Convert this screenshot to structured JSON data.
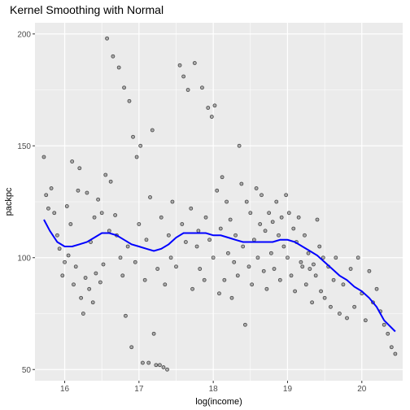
{
  "chart_data": {
    "type": "scatter",
    "title": "Kernel Smoothing with Normal",
    "xlabel": "log(income)",
    "ylabel": "packpc",
    "xlim": [
      15.6,
      20.55
    ],
    "ylim": [
      45,
      205
    ],
    "x_ticks": [
      "16",
      "17",
      "18",
      "19",
      "20"
    ],
    "y_ticks": [
      "50",
      "100",
      "150",
      "200"
    ],
    "grid": true,
    "legend": "none",
    "colors": {
      "panel": "#ebebeb",
      "grid": "#ffffff",
      "points": "#333333",
      "smooth": "#0000ff"
    },
    "series": [
      {
        "type": "scatter",
        "points": [
          [
            15.72,
            145
          ],
          [
            15.75,
            128
          ],
          [
            15.78,
            122
          ],
          [
            15.82,
            131
          ],
          [
            15.86,
            120
          ],
          [
            15.9,
            110
          ],
          [
            15.93,
            104
          ],
          [
            15.97,
            92
          ],
          [
            16.0,
            98
          ],
          [
            16.03,
            123
          ],
          [
            16.05,
            101
          ],
          [
            16.08,
            115
          ],
          [
            16.1,
            143
          ],
          [
            16.12,
            88
          ],
          [
            16.15,
            96
          ],
          [
            16.18,
            130
          ],
          [
            16.2,
            140
          ],
          [
            16.22,
            82
          ],
          [
            16.25,
            75
          ],
          [
            16.28,
            91
          ],
          [
            16.3,
            129
          ],
          [
            16.33,
            86
          ],
          [
            16.35,
            107
          ],
          [
            16.38,
            80
          ],
          [
            16.4,
            118
          ],
          [
            16.42,
            93
          ],
          [
            16.45,
            126
          ],
          [
            16.48,
            89
          ],
          [
            16.5,
            120
          ],
          [
            16.52,
            97
          ],
          [
            16.55,
            137
          ],
          [
            16.57,
            198
          ],
          [
            16.6,
            112
          ],
          [
            16.62,
            134
          ],
          [
            16.65,
            190
          ],
          [
            16.68,
            119
          ],
          [
            16.7,
            110
          ],
          [
            16.73,
            185
          ],
          [
            16.75,
            100
          ],
          [
            16.78,
            92
          ],
          [
            16.8,
            176
          ],
          [
            16.82,
            74
          ],
          [
            16.85,
            105
          ],
          [
            16.87,
            170
          ],
          [
            16.9,
            60
          ],
          [
            16.92,
            154
          ],
          [
            16.95,
            98
          ],
          [
            16.97,
            145
          ],
          [
            17.0,
            115
          ],
          [
            17.02,
            150
          ],
          [
            17.05,
            53
          ],
          [
            17.08,
            90
          ],
          [
            17.1,
            108
          ],
          [
            17.13,
            53
          ],
          [
            17.15,
            127
          ],
          [
            17.18,
            157
          ],
          [
            17.2,
            66
          ],
          [
            17.23,
            52
          ],
          [
            17.25,
            95
          ],
          [
            17.28,
            52
          ],
          [
            17.3,
            118
          ],
          [
            17.33,
            51
          ],
          [
            17.35,
            88
          ],
          [
            17.38,
            50
          ],
          [
            17.4,
            110
          ],
          [
            17.43,
            100
          ],
          [
            17.45,
            125
          ],
          [
            17.5,
            96
          ],
          [
            17.55,
            186
          ],
          [
            17.58,
            115
          ],
          [
            17.6,
            181
          ],
          [
            17.63,
            107
          ],
          [
            17.66,
            175
          ],
          [
            17.7,
            122
          ],
          [
            17.72,
            86
          ],
          [
            17.75,
            187
          ],
          [
            17.78,
            105
          ],
          [
            17.8,
            112
          ],
          [
            17.82,
            95
          ],
          [
            17.85,
            176
          ],
          [
            17.88,
            90
          ],
          [
            17.9,
            118
          ],
          [
            17.93,
            167
          ],
          [
            17.95,
            108
          ],
          [
            17.98,
            163
          ],
          [
            18.0,
            100
          ],
          [
            18.02,
            168
          ],
          [
            18.05,
            130
          ],
          [
            18.08,
            84
          ],
          [
            18.1,
            113
          ],
          [
            18.12,
            136
          ],
          [
            18.15,
            90
          ],
          [
            18.18,
            125
          ],
          [
            18.2,
            102
          ],
          [
            18.23,
            117
          ],
          [
            18.25,
            82
          ],
          [
            18.28,
            98
          ],
          [
            18.3,
            110
          ],
          [
            18.33,
            92
          ],
          [
            18.35,
            150
          ],
          [
            18.38,
            133
          ],
          [
            18.4,
            105
          ],
          [
            18.43,
            70
          ],
          [
            18.45,
            125
          ],
          [
            18.48,
            96
          ],
          [
            18.5,
            120
          ],
          [
            18.52,
            88
          ],
          [
            18.55,
            108
          ],
          [
            18.58,
            131
          ],
          [
            18.6,
            100
          ],
          [
            18.63,
            115
          ],
          [
            18.65,
            128
          ],
          [
            18.68,
            94
          ],
          [
            18.7,
            112
          ],
          [
            18.72,
            86
          ],
          [
            18.75,
            120
          ],
          [
            18.78,
            102
          ],
          [
            18.8,
            116
          ],
          [
            18.82,
            95
          ],
          [
            18.85,
            125
          ],
          [
            18.88,
            110
          ],
          [
            18.9,
            90
          ],
          [
            18.92,
            118
          ],
          [
            18.95,
            105
          ],
          [
            18.98,
            128
          ],
          [
            19.0,
            100
          ],
          [
            19.02,
            120
          ],
          [
            19.05,
            92
          ],
          [
            19.08,
            113
          ],
          [
            19.1,
            85
          ],
          [
            19.12,
            107
          ],
          [
            19.15,
            118
          ],
          [
            19.18,
            98
          ],
          [
            19.2,
            96
          ],
          [
            19.23,
            110
          ],
          [
            19.25,
            88
          ],
          [
            19.28,
            102
          ],
          [
            19.3,
            95
          ],
          [
            19.33,
            80
          ],
          [
            19.35,
            97
          ],
          [
            19.38,
            92
          ],
          [
            19.4,
            117
          ],
          [
            19.43,
            105
          ],
          [
            19.45,
            85
          ],
          [
            19.48,
            100
          ],
          [
            19.5,
            82
          ],
          [
            19.55,
            96
          ],
          [
            19.58,
            78
          ],
          [
            19.62,
            90
          ],
          [
            19.65,
            100
          ],
          [
            19.7,
            75
          ],
          [
            19.75,
            88
          ],
          [
            19.8,
            73
          ],
          [
            19.85,
            95
          ],
          [
            19.9,
            78
          ],
          [
            19.95,
            100
          ],
          [
            20.0,
            84
          ],
          [
            20.05,
            72
          ],
          [
            20.1,
            94
          ],
          [
            20.15,
            80
          ],
          [
            20.2,
            86
          ],
          [
            20.25,
            76
          ],
          [
            20.3,
            70
          ],
          [
            20.35,
            66
          ],
          [
            20.4,
            60
          ],
          [
            20.45,
            57
          ]
        ]
      },
      {
        "type": "line",
        "points": [
          [
            15.72,
            117
          ],
          [
            15.8,
            112
          ],
          [
            15.9,
            107
          ],
          [
            16.0,
            105
          ],
          [
            16.1,
            105
          ],
          [
            16.2,
            106
          ],
          [
            16.3,
            107
          ],
          [
            16.4,
            109
          ],
          [
            16.5,
            111
          ],
          [
            16.6,
            111
          ],
          [
            16.7,
            110
          ],
          [
            16.8,
            108
          ],
          [
            16.9,
            106
          ],
          [
            17.0,
            105
          ],
          [
            17.1,
            104
          ],
          [
            17.2,
            103
          ],
          [
            17.3,
            104
          ],
          [
            17.4,
            106
          ],
          [
            17.5,
            109
          ],
          [
            17.6,
            111
          ],
          [
            17.7,
            111
          ],
          [
            17.8,
            111
          ],
          [
            17.9,
            111
          ],
          [
            18.0,
            110
          ],
          [
            18.1,
            110
          ],
          [
            18.2,
            109
          ],
          [
            18.3,
            108
          ],
          [
            18.4,
            107
          ],
          [
            18.5,
            107
          ],
          [
            18.6,
            107
          ],
          [
            18.7,
            107
          ],
          [
            18.8,
            107
          ],
          [
            18.9,
            108
          ],
          [
            19.0,
            108
          ],
          [
            19.1,
            107
          ],
          [
            19.2,
            105
          ],
          [
            19.3,
            103
          ],
          [
            19.4,
            101
          ],
          [
            19.5,
            98
          ],
          [
            19.6,
            95
          ],
          [
            19.7,
            92
          ],
          [
            19.8,
            90
          ],
          [
            19.9,
            87
          ],
          [
            20.0,
            85
          ],
          [
            20.1,
            82
          ],
          [
            20.2,
            78
          ],
          [
            20.3,
            72
          ],
          [
            20.45,
            67
          ]
        ]
      }
    ]
  }
}
